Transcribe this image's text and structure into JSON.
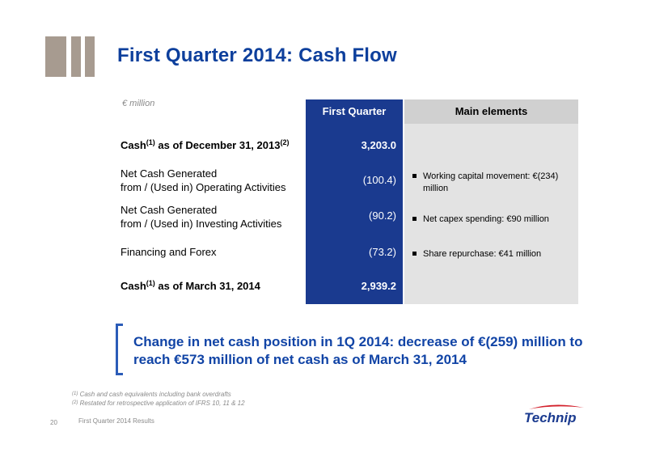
{
  "slide": {
    "title": "First Quarter 2014: Cash Flow",
    "unit_label": "€ million",
    "page_number": "20",
    "footer_text": "First Quarter 2014 Results"
  },
  "table": {
    "col_first_quarter": "First Quarter",
    "col_main_elements": "Main elements",
    "rows": [
      {
        "label_a": "Cash",
        "sup_a": "(1)",
        "label_b": " as of December 31, 2013",
        "sup_b": "(2)",
        "value": "3,203.0"
      },
      {
        "line1": "Net Cash Generated",
        "line2": "from / (Used in) Operating Activities",
        "value": "(100.4)",
        "note_line1": "Working capital movement: €(234)",
        "note_line2": "million"
      },
      {
        "line1": "Net Cash Generated",
        "line2": "from / (Used in) Investing Activities",
        "value": "(90.2)",
        "note": "Net capex spending: €90 million"
      },
      {
        "label": "Financing and Forex",
        "value": "(73.2)",
        "note": "Share repurchase: €41 million"
      },
      {
        "label_a": "Cash",
        "sup_a": "(1)",
        "label_b": " as of March 31, 2014",
        "value": "2,939.2"
      }
    ]
  },
  "highlight": {
    "line1": "Change in net cash position in 1Q 2014: decrease of €(259) million to",
    "line2": "reach €573 million of net cash as of March 31, 2014"
  },
  "footnotes": [
    {
      "mark": "(1)",
      "text": " Cash and cash equivalents including bank overdrafts"
    },
    {
      "mark": "(2)",
      "text": " Restated for retrospective application of IFRS 10, 11 & 12"
    }
  ],
  "logo": {
    "text": "Technip"
  },
  "colors": {
    "title_blue": "#0d3f9c",
    "column_blue": "#1a3a8f",
    "panel_grey": "#e3e3e3",
    "accent_bars": "#a79b90",
    "logo_red": "#d3212c"
  }
}
